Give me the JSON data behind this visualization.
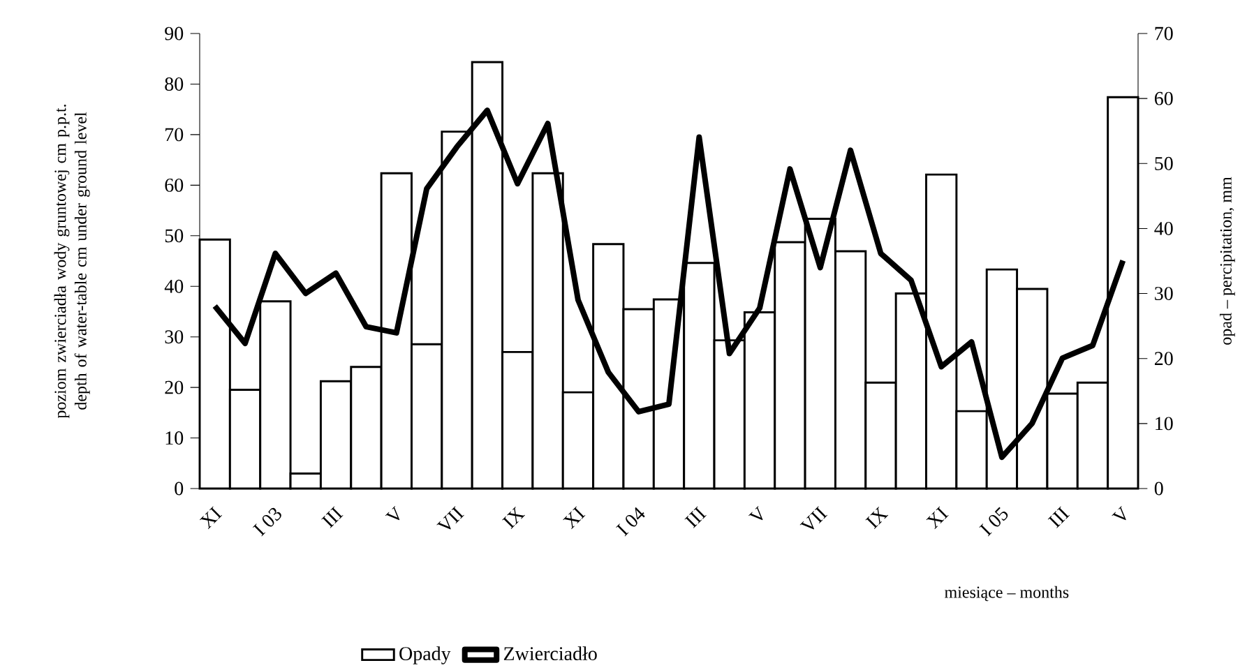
{
  "chart_data": {
    "type": "bar",
    "categories": [
      "XI",
      null,
      "I 03",
      null,
      "III",
      null,
      "V",
      null,
      "VII",
      null,
      "IX",
      null,
      "XI",
      null,
      "I 04",
      null,
      "III",
      null,
      "V",
      null,
      "VII",
      null,
      "IX",
      null,
      "XI",
      null,
      "I 05",
      null,
      "III",
      null,
      "V"
    ],
    "series": [
      {
        "name": "Opady",
        "axis": "y2",
        "color": "#ffffff",
        "values": [
          38.3,
          15.2,
          28.8,
          2.3,
          16.5,
          18.7,
          48.5,
          22.2,
          54.9,
          65.6,
          21.0,
          48.5,
          14.8,
          37.6,
          27.6,
          29.1,
          34.7,
          22.8,
          27.1,
          37.9,
          41.5,
          36.5,
          16.3,
          30.0,
          48.3,
          11.9,
          33.7,
          30.7,
          14.6,
          16.3,
          60.2
        ]
      },
      {
        "name": "Zwierciadło",
        "type": "line",
        "axis": "y",
        "color": "#000000",
        "values": [
          36.1,
          28.7,
          46.5,
          38.6,
          42.6,
          32.0,
          30.8,
          59.3,
          67.6,
          74.8,
          60.3,
          72.2,
          37.3,
          23.0,
          15.2,
          16.7,
          69.5,
          26.7,
          35.7,
          63.2,
          43.7,
          66.9,
          46.5,
          41.2,
          24.1,
          29.0,
          6.2,
          12.9,
          25.8,
          28.3,
          45.1
        ]
      }
    ],
    "ylabel": "poziom zwierciadła wody gruntowej cm p.p.t. depth of water-table cm under ground level",
    "y2label": "opad – percipitation, mm",
    "xlabel": "miesiące – months",
    "ylim": [
      0,
      90
    ],
    "yticks": [
      0,
      10,
      20,
      30,
      40,
      50,
      60,
      70,
      80,
      90
    ],
    "y2lim": [
      0,
      70
    ],
    "y2ticks": [
      0,
      10,
      20,
      30,
      40,
      50,
      60,
      70
    ],
    "legend": "bottom",
    "line_style": "solid"
  }
}
